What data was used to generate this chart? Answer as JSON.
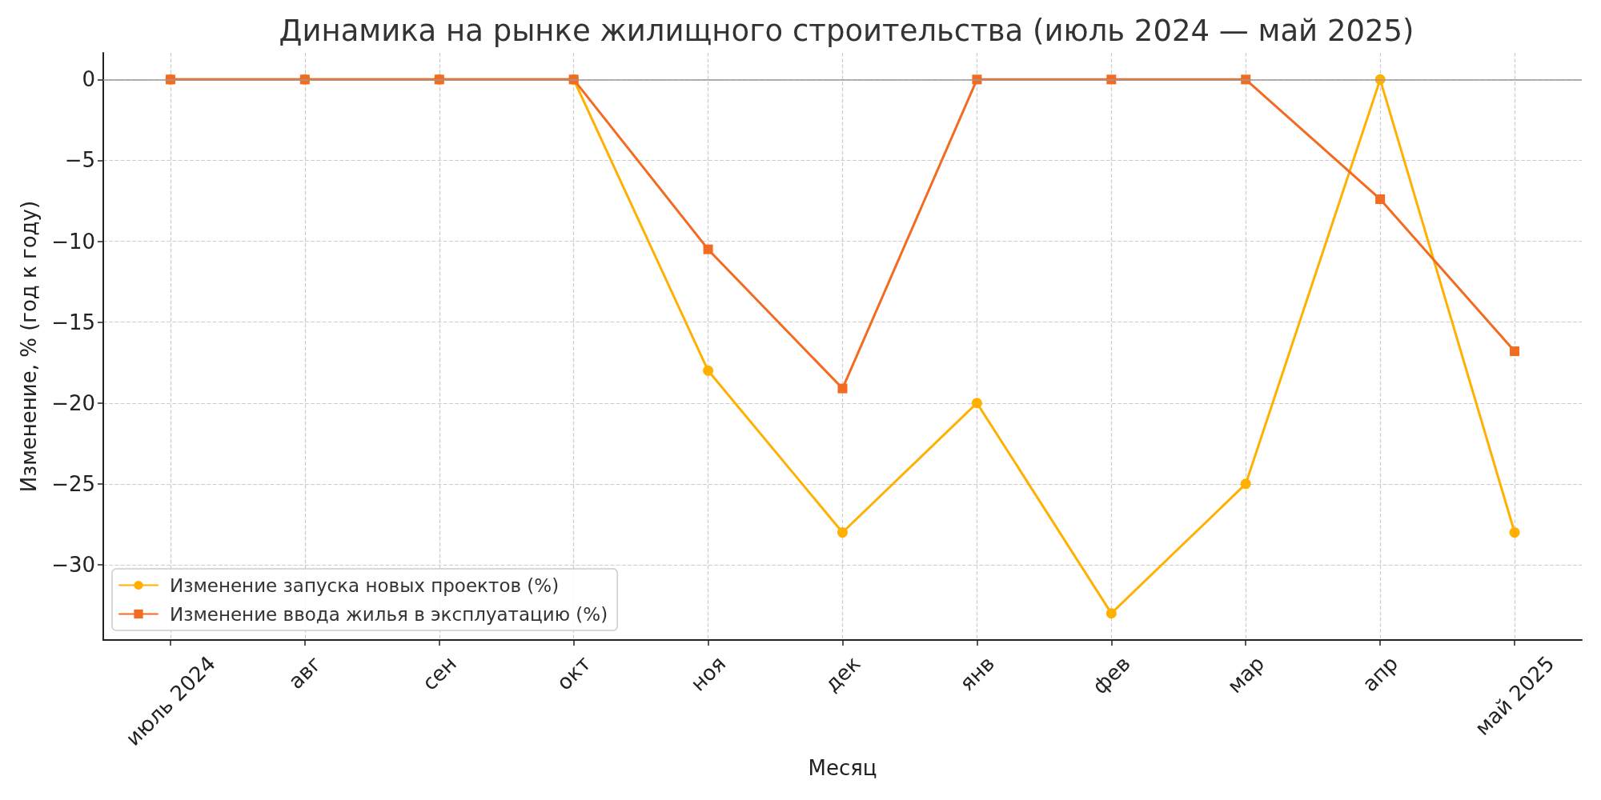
{
  "chart_data": {
    "type": "line",
    "title": "Динамика на рынке жилищного строительства (июль 2024 — май 2025)",
    "xlabel": "Месяц",
    "ylabel": "Изменение, % (год к году)",
    "categories": [
      "июль 2024",
      "авг",
      "сен",
      "окт",
      "ноя",
      "дек",
      "янв",
      "фев",
      "мар",
      "апр",
      "май 2025"
    ],
    "series": [
      {
        "name": "Изменение запуска новых проектов (%)",
        "color": "#ffb000",
        "marker": "circle",
        "values": [
          0,
          0,
          0,
          0,
          -18,
          -28,
          -20,
          -33,
          -25,
          0,
          -28
        ]
      },
      {
        "name": "Изменение ввода жилья в эксплуатацию (%)",
        "color": "#f26b21",
        "marker": "square",
        "values": [
          0,
          0,
          0,
          0,
          -10.5,
          -19.1,
          0,
          0,
          0,
          -7.4,
          -16.8
        ]
      }
    ],
    "ylim": [
      -34.65,
      1.65
    ],
    "yticks": [
      0,
      {
        "value": -5,
        "label": "−5"
      },
      {
        "value": -10,
        "label": "−10"
      },
      {
        "value": -15,
        "label": "−15"
      },
      {
        "value": -20,
        "label": "−20"
      },
      {
        "value": -25,
        "label": "−25"
      },
      {
        "value": -30,
        "label": "−30"
      }
    ],
    "grid": true,
    "legend": "bottom left",
    "line_style": "solid",
    "ref_lines": [
      {
        "axis": "y",
        "value": 0,
        "color": "#999999"
      }
    ]
  }
}
